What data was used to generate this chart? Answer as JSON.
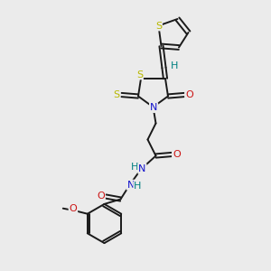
{
  "bg_color": "#ebebeb",
  "bond_color": "#1a1a1a",
  "atom_colors": {
    "S": "#b8b800",
    "N": "#1414cc",
    "O": "#cc1414",
    "H": "#008080"
  },
  "figsize": [
    3.0,
    3.0
  ],
  "dpi": 100
}
